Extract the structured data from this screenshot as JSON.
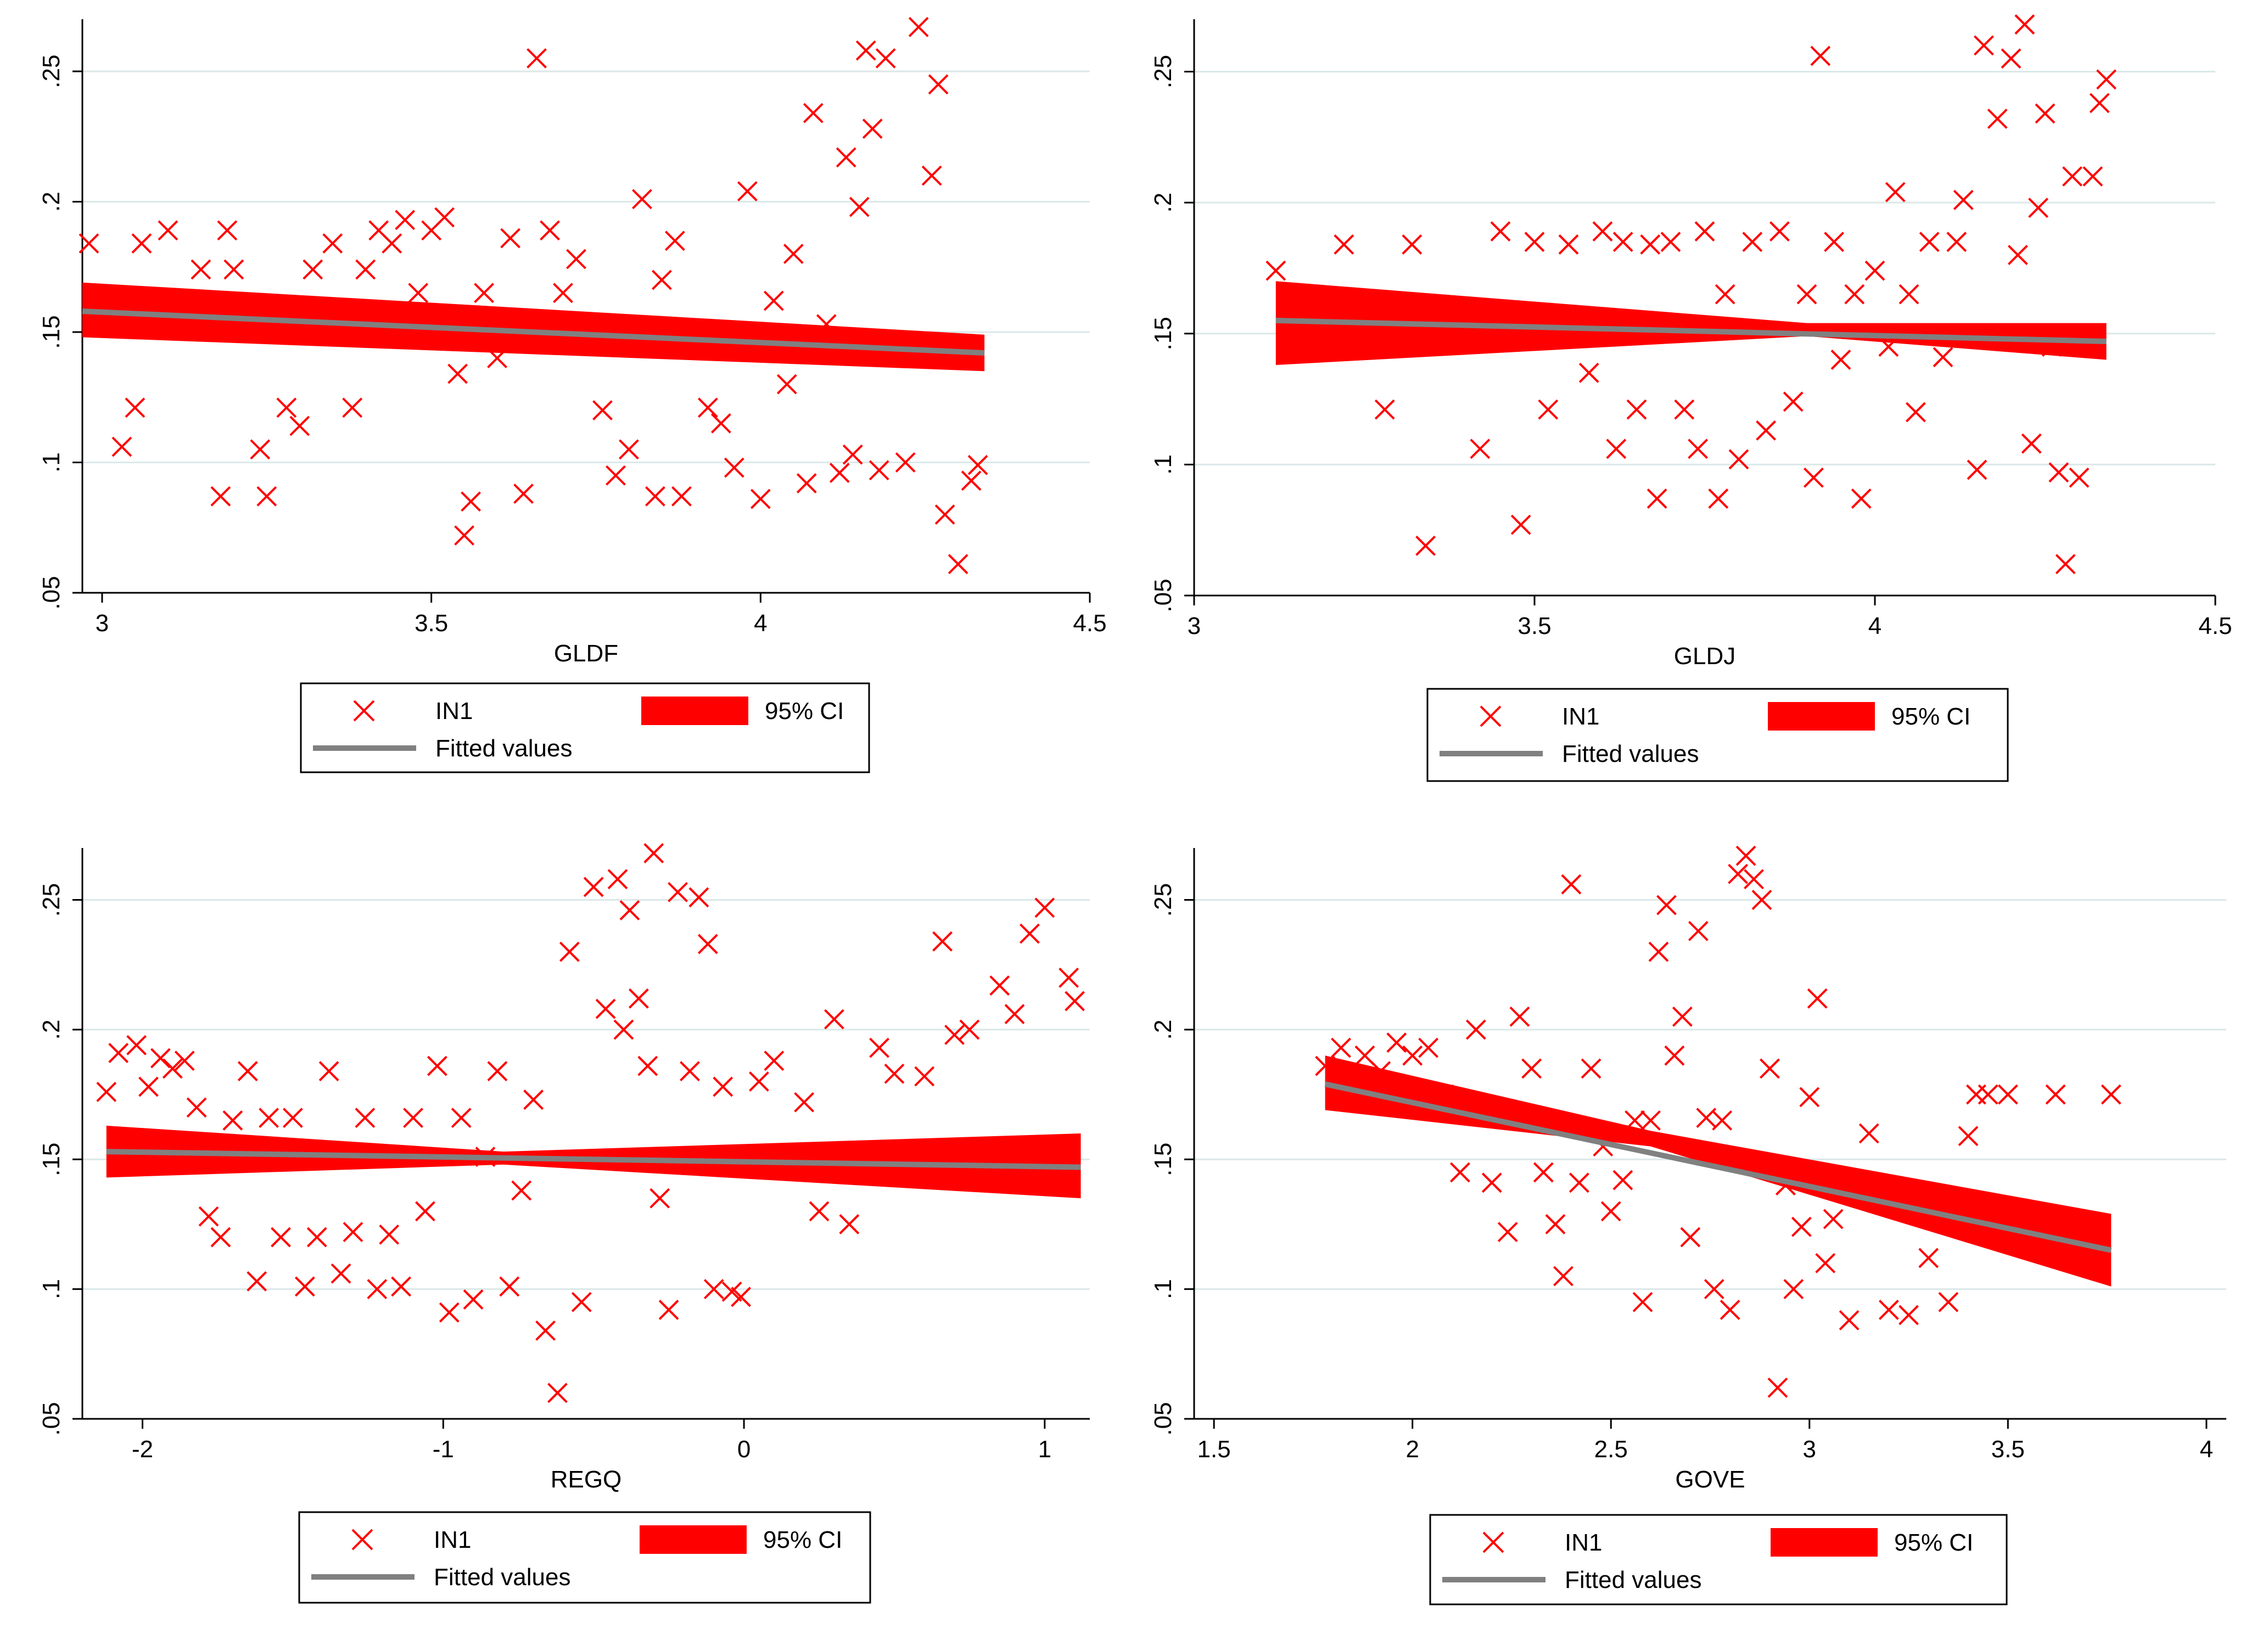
{
  "legend": {
    "scatter_label": "IN1",
    "ci_label": "95% CI",
    "fit_label": "Fitted values"
  },
  "colors": {
    "marker": "#ff0000",
    "ci_band": "#ff0000",
    "fit_line": "#808080",
    "grid": "#dbe8e8",
    "axis": "#000000"
  },
  "chart_data": [
    {
      "type": "scatter",
      "xlabel": "GLDF",
      "ylabel": "",
      "xlim": [
        2.97,
        4.5
      ],
      "ylim": [
        0.05,
        0.27
      ],
      "xticks": [
        "3",
        "3.5",
        "4",
        "4.5"
      ],
      "yticks": [
        ".05",
        ".1",
        ".15",
        ".2",
        ".25"
      ],
      "grid": true,
      "legend_position": "bottom",
      "fit": {
        "x": [
          2.97,
          4.34
        ],
        "y": [
          0.158,
          0.142
        ]
      },
      "ci": {
        "x": [
          2.97,
          4.34
        ],
        "lower": [
          0.148,
          0.135
        ],
        "upper": [
          0.169,
          0.149
        ]
      },
      "points": [
        [
          2.98,
          0.184
        ],
        [
          3.03,
          0.106
        ],
        [
          3.05,
          0.121
        ],
        [
          3.06,
          0.184
        ],
        [
          3.1,
          0.189
        ],
        [
          3.15,
          0.174
        ],
        [
          3.18,
          0.087
        ],
        [
          3.19,
          0.189
        ],
        [
          3.2,
          0.174
        ],
        [
          3.24,
          0.105
        ],
        [
          3.25,
          0.087
        ],
        [
          3.28,
          0.121
        ],
        [
          3.3,
          0.114
        ],
        [
          3.32,
          0.174
        ],
        [
          3.35,
          0.184
        ],
        [
          3.38,
          0.121
        ],
        [
          3.4,
          0.174
        ],
        [
          3.42,
          0.189
        ],
        [
          3.44,
          0.184
        ],
        [
          3.46,
          0.193
        ],
        [
          3.48,
          0.165
        ],
        [
          3.5,
          0.189
        ],
        [
          3.52,
          0.194
        ],
        [
          3.54,
          0.134
        ],
        [
          3.55,
          0.072
        ],
        [
          3.56,
          0.085
        ],
        [
          3.58,
          0.165
        ],
        [
          3.6,
          0.14
        ],
        [
          3.62,
          0.186
        ],
        [
          3.64,
          0.088
        ],
        [
          3.66,
          0.255
        ],
        [
          3.68,
          0.189
        ],
        [
          3.7,
          0.165
        ],
        [
          3.72,
          0.178
        ],
        [
          3.74,
          0.145
        ],
        [
          3.76,
          0.12
        ],
        [
          3.78,
          0.095
        ],
        [
          3.8,
          0.105
        ],
        [
          3.82,
          0.201
        ],
        [
          3.84,
          0.087
        ],
        [
          3.85,
          0.17
        ],
        [
          3.87,
          0.185
        ],
        [
          3.88,
          0.087
        ],
        [
          3.9,
          0.145
        ],
        [
          3.92,
          0.121
        ],
        [
          3.94,
          0.115
        ],
        [
          3.96,
          0.098
        ],
        [
          3.98,
          0.204
        ],
        [
          4.0,
          0.086
        ],
        [
          4.02,
          0.162
        ],
        [
          4.04,
          0.13
        ],
        [
          4.05,
          0.18
        ],
        [
          4.07,
          0.092
        ],
        [
          4.08,
          0.234
        ],
        [
          4.1,
          0.153
        ],
        [
          4.12,
          0.096
        ],
        [
          4.13,
          0.217
        ],
        [
          4.14,
          0.103
        ],
        [
          4.15,
          0.198
        ],
        [
          4.16,
          0.258
        ],
        [
          4.17,
          0.228
        ],
        [
          4.18,
          0.097
        ],
        [
          4.19,
          0.255
        ],
        [
          4.2,
          0.142
        ],
        [
          4.22,
          0.1
        ],
        [
          4.24,
          0.267
        ],
        [
          4.26,
          0.21
        ],
        [
          4.27,
          0.245
        ],
        [
          4.28,
          0.08
        ],
        [
          4.3,
          0.061
        ],
        [
          4.32,
          0.093
        ],
        [
          4.33,
          0.099
        ]
      ]
    },
    {
      "type": "scatter",
      "xlabel": "GLDJ",
      "ylabel": "",
      "xlim": [
        3.0,
        4.5
      ],
      "ylim": [
        0.05,
        0.27
      ],
      "xticks": [
        "3",
        "3.5",
        "4",
        "4.5"
      ],
      "yticks": [
        ".05",
        ".1",
        ".15",
        ".2",
        ".25"
      ],
      "grid": true,
      "legend_position": "bottom",
      "fit": {
        "x": [
          3.12,
          4.34
        ],
        "y": [
          0.155,
          0.147
        ]
      },
      "ci": {
        "x": [
          3.12,
          3.9,
          4.34
        ],
        "lower": [
          0.138,
          0.149,
          0.14
        ],
        "upper": [
          0.17,
          0.154,
          0.154
        ]
      },
      "points": [
        [
          3.12,
          0.174
        ],
        [
          3.22,
          0.184
        ],
        [
          3.28,
          0.121
        ],
        [
          3.32,
          0.184
        ],
        [
          3.34,
          0.069
        ],
        [
          3.42,
          0.106
        ],
        [
          3.45,
          0.189
        ],
        [
          3.48,
          0.077
        ],
        [
          3.5,
          0.185
        ],
        [
          3.52,
          0.121
        ],
        [
          3.55,
          0.184
        ],
        [
          3.58,
          0.135
        ],
        [
          3.6,
          0.189
        ],
        [
          3.62,
          0.106
        ],
        [
          3.63,
          0.185
        ],
        [
          3.65,
          0.121
        ],
        [
          3.67,
          0.184
        ],
        [
          3.68,
          0.087
        ],
        [
          3.7,
          0.185
        ],
        [
          3.72,
          0.121
        ],
        [
          3.74,
          0.106
        ],
        [
          3.75,
          0.189
        ],
        [
          3.77,
          0.087
        ],
        [
          3.78,
          0.165
        ],
        [
          3.8,
          0.102
        ],
        [
          3.82,
          0.185
        ],
        [
          3.84,
          0.113
        ],
        [
          3.86,
          0.189
        ],
        [
          3.88,
          0.124
        ],
        [
          3.9,
          0.165
        ],
        [
          3.91,
          0.095
        ],
        [
          3.92,
          0.256
        ],
        [
          3.94,
          0.185
        ],
        [
          3.95,
          0.14
        ],
        [
          3.97,
          0.165
        ],
        [
          3.98,
          0.087
        ],
        [
          4.0,
          0.174
        ],
        [
          4.02,
          0.145
        ],
        [
          4.03,
          0.204
        ],
        [
          4.05,
          0.165
        ],
        [
          4.06,
          0.12
        ],
        [
          4.08,
          0.185
        ],
        [
          4.1,
          0.141
        ],
        [
          4.12,
          0.185
        ],
        [
          4.13,
          0.201
        ],
        [
          4.15,
          0.098
        ],
        [
          4.16,
          0.26
        ],
        [
          4.18,
          0.232
        ],
        [
          4.2,
          0.255
        ],
        [
          4.21,
          0.18
        ],
        [
          4.22,
          0.268
        ],
        [
          4.23,
          0.108
        ],
        [
          4.24,
          0.198
        ],
        [
          4.25,
          0.234
        ],
        [
          4.26,
          0.145
        ],
        [
          4.27,
          0.097
        ],
        [
          4.28,
          0.062
        ],
        [
          4.29,
          0.21
        ],
        [
          4.3,
          0.095
        ],
        [
          4.32,
          0.21
        ],
        [
          4.33,
          0.238
        ],
        [
          4.34,
          0.247
        ]
      ]
    },
    {
      "type": "scatter",
      "xlabel": "REGQ",
      "ylabel": "",
      "xlim": [
        -2.2,
        1.15
      ],
      "ylim": [
        0.05,
        0.27
      ],
      "xticks": [
        "-2",
        "-1",
        "0",
        "1"
      ],
      "yticks": [
        ".05",
        ".1",
        ".15",
        ".2",
        ".25"
      ],
      "grid": true,
      "legend_position": "bottom",
      "fit": {
        "x": [
          -2.12,
          1.12
        ],
        "y": [
          0.153,
          0.147
        ]
      },
      "ci": {
        "x": [
          -2.12,
          -0.8,
          1.12
        ],
        "lower": [
          0.143,
          0.148,
          0.135
        ],
        "upper": [
          0.163,
          0.153,
          0.16
        ]
      },
      "points": [
        [
          -2.12,
          0.176
        ],
        [
          -2.08,
          0.191
        ],
        [
          -2.02,
          0.194
        ],
        [
          -1.98,
          0.178
        ],
        [
          -1.94,
          0.189
        ],
        [
          -1.9,
          0.185
        ],
        [
          -1.86,
          0.188
        ],
        [
          -1.82,
          0.17
        ],
        [
          -1.78,
          0.128
        ],
        [
          -1.74,
          0.12
        ],
        [
          -1.7,
          0.165
        ],
        [
          -1.65,
          0.184
        ],
        [
          -1.62,
          0.103
        ],
        [
          -1.58,
          0.166
        ],
        [
          -1.54,
          0.12
        ],
        [
          -1.5,
          0.166
        ],
        [
          -1.46,
          0.101
        ],
        [
          -1.42,
          0.12
        ],
        [
          -1.38,
          0.184
        ],
        [
          -1.34,
          0.106
        ],
        [
          -1.3,
          0.122
        ],
        [
          -1.26,
          0.166
        ],
        [
          -1.22,
          0.1
        ],
        [
          -1.18,
          0.121
        ],
        [
          -1.14,
          0.101
        ],
        [
          -1.1,
          0.166
        ],
        [
          -1.06,
          0.13
        ],
        [
          -1.02,
          0.186
        ],
        [
          -0.98,
          0.091
        ],
        [
          -0.94,
          0.166
        ],
        [
          -0.9,
          0.096
        ],
        [
          -0.86,
          0.151
        ],
        [
          -0.82,
          0.184
        ],
        [
          -0.78,
          0.101
        ],
        [
          -0.74,
          0.138
        ],
        [
          -0.7,
          0.173
        ],
        [
          -0.66,
          0.084
        ],
        [
          -0.62,
          0.06
        ],
        [
          -0.58,
          0.23
        ],
        [
          -0.54,
          0.095
        ],
        [
          -0.5,
          0.255
        ],
        [
          -0.46,
          0.208
        ],
        [
          -0.42,
          0.258
        ],
        [
          -0.4,
          0.2
        ],
        [
          -0.38,
          0.246
        ],
        [
          -0.35,
          0.212
        ],
        [
          -0.32,
          0.186
        ],
        [
          -0.3,
          0.268
        ],
        [
          -0.28,
          0.135
        ],
        [
          -0.25,
          0.092
        ],
        [
          -0.22,
          0.253
        ],
        [
          -0.18,
          0.184
        ],
        [
          -0.15,
          0.251
        ],
        [
          -0.12,
          0.233
        ],
        [
          -0.1,
          0.1
        ],
        [
          -0.07,
          0.178
        ],
        [
          -0.04,
          0.099
        ],
        [
          -0.01,
          0.097
        ],
        [
          0.05,
          0.18
        ],
        [
          0.1,
          0.188
        ],
        [
          0.2,
          0.172
        ],
        [
          0.25,
          0.13
        ],
        [
          0.3,
          0.204
        ],
        [
          0.35,
          0.125
        ],
        [
          0.45,
          0.193
        ],
        [
          0.5,
          0.183
        ],
        [
          0.6,
          0.182
        ],
        [
          0.66,
          0.234
        ],
        [
          0.7,
          0.198
        ],
        [
          0.75,
          0.2
        ],
        [
          0.85,
          0.217
        ],
        [
          0.9,
          0.206
        ],
        [
          0.95,
          0.237
        ],
        [
          1.0,
          0.247
        ],
        [
          1.08,
          0.22
        ],
        [
          1.1,
          0.211
        ]
      ]
    },
    {
      "type": "scatter",
      "xlabel": "GOVE",
      "ylabel": "",
      "xlim": [
        1.45,
        4.05
      ],
      "ylim": [
        0.05,
        0.27
      ],
      "xticks": [
        "1.5",
        "2",
        "2.5",
        "3",
        "3.5",
        "4"
      ],
      "yticks": [
        ".05",
        ".1",
        ".15",
        ".2",
        ".25"
      ],
      "grid": true,
      "legend_position": "bottom",
      "fit": {
        "x": [
          1.78,
          3.76
        ],
        "y": [
          0.179,
          0.115
        ]
      },
      "ci": {
        "x": [
          1.78,
          2.6,
          3.76
        ],
        "lower": [
          0.169,
          0.155,
          0.101
        ],
        "upper": [
          0.19,
          0.161,
          0.129
        ]
      },
      "points": [
        [
          1.78,
          0.186
        ],
        [
          1.82,
          0.193
        ],
        [
          1.88,
          0.19
        ],
        [
          1.92,
          0.184
        ],
        [
          1.96,
          0.195
        ],
        [
          2.0,
          0.19
        ],
        [
          2.04,
          0.193
        ],
        [
          2.08,
          0.175
        ],
        [
          2.12,
          0.145
        ],
        [
          2.16,
          0.2
        ],
        [
          2.2,
          0.141
        ],
        [
          2.24,
          0.122
        ],
        [
          2.27,
          0.205
        ],
        [
          2.3,
          0.185
        ],
        [
          2.33,
          0.145
        ],
        [
          2.36,
          0.125
        ],
        [
          2.38,
          0.105
        ],
        [
          2.4,
          0.256
        ],
        [
          2.42,
          0.141
        ],
        [
          2.45,
          0.185
        ],
        [
          2.48,
          0.155
        ],
        [
          2.5,
          0.13
        ],
        [
          2.53,
          0.142
        ],
        [
          2.56,
          0.165
        ],
        [
          2.58,
          0.095
        ],
        [
          2.6,
          0.165
        ],
        [
          2.62,
          0.23
        ],
        [
          2.64,
          0.248
        ],
        [
          2.66,
          0.19
        ],
        [
          2.68,
          0.205
        ],
        [
          2.7,
          0.12
        ],
        [
          2.72,
          0.238
        ],
        [
          2.74,
          0.166
        ],
        [
          2.76,
          0.1
        ],
        [
          2.78,
          0.165
        ],
        [
          2.8,
          0.092
        ],
        [
          2.82,
          0.26
        ],
        [
          2.84,
          0.267
        ],
        [
          2.86,
          0.258
        ],
        [
          2.88,
          0.25
        ],
        [
          2.9,
          0.185
        ],
        [
          2.92,
          0.062
        ],
        [
          2.94,
          0.14
        ],
        [
          2.96,
          0.1
        ],
        [
          2.98,
          0.124
        ],
        [
          3.0,
          0.174
        ],
        [
          3.02,
          0.212
        ],
        [
          3.04,
          0.11
        ],
        [
          3.06,
          0.127
        ],
        [
          3.1,
          0.088
        ],
        [
          3.15,
          0.16
        ],
        [
          3.2,
          0.092
        ],
        [
          3.25,
          0.09
        ],
        [
          3.3,
          0.112
        ],
        [
          3.35,
          0.095
        ],
        [
          3.4,
          0.159
        ],
        [
          3.42,
          0.175
        ],
        [
          3.45,
          0.175
        ],
        [
          3.5,
          0.175
        ],
        [
          3.62,
          0.175
        ],
        [
          3.76,
          0.175
        ]
      ]
    }
  ]
}
